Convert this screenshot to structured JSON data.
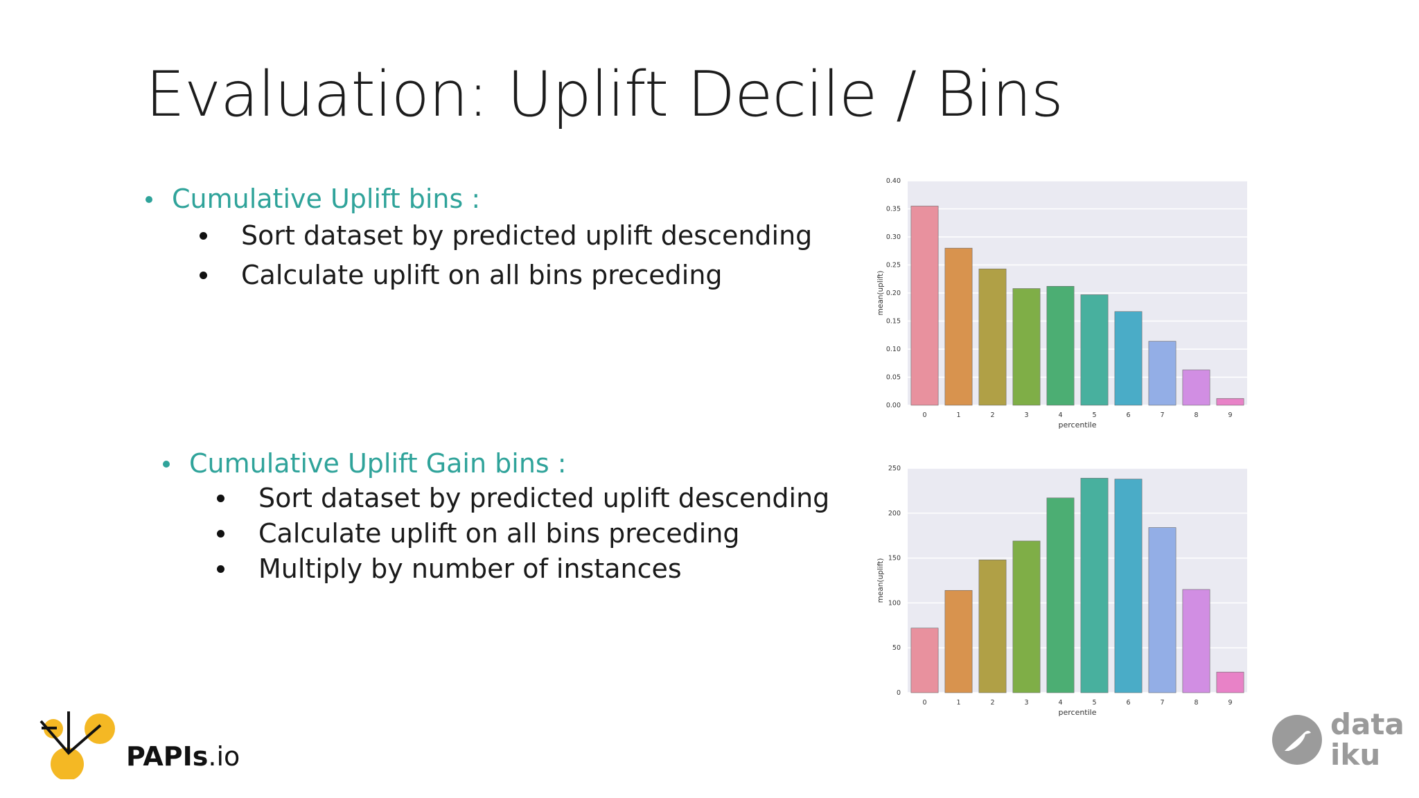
{
  "title": "Evaluation: Uplift Decile / Bins",
  "section1": {
    "heading": "Cumulative Uplift bins :",
    "bullets": [
      "Sort dataset by predicted uplift descending",
      "Calculate uplift on all bins preceding"
    ]
  },
  "section2": {
    "heading": "Cumulative Uplift Gain bins :",
    "bullets": [
      "Sort dataset by predicted uplift descending",
      "Calculate uplift on all bins preceding",
      "Multiply by number of instances"
    ]
  },
  "logos": {
    "papis": {
      "bold": "PAPIs",
      "light": ".io"
    },
    "dataiku": "data\niku"
  },
  "chart_data": [
    {
      "type": "bar",
      "categories": [
        "0",
        "1",
        "2",
        "3",
        "4",
        "5",
        "6",
        "7",
        "8",
        "9"
      ],
      "values": [
        0.355,
        0.28,
        0.243,
        0.208,
        0.212,
        0.197,
        0.167,
        0.114,
        0.063,
        0.012
      ],
      "colors": [
        "#e8919e",
        "#d8934e",
        "#b0a046",
        "#7fae47",
        "#4cae73",
        "#48b09e",
        "#4aacc7",
        "#93aee6",
        "#d18ee3",
        "#e882c7"
      ],
      "xlabel": "percentile",
      "ylabel": "mean(uplift)",
      "ylim": [
        0,
        0.4
      ],
      "yticks": [
        "0.00",
        "0.05",
        "0.10",
        "0.15",
        "0.20",
        "0.25",
        "0.30",
        "0.35",
        "0.40"
      ],
      "background": "#eaeaf2",
      "grid": true
    },
    {
      "type": "bar",
      "categories": [
        "0",
        "1",
        "2",
        "3",
        "4",
        "5",
        "6",
        "7",
        "8",
        "9"
      ],
      "values": [
        72,
        114,
        148,
        169,
        217,
        239,
        238,
        184,
        115,
        23
      ],
      "colors": [
        "#e8919e",
        "#d8934e",
        "#b0a046",
        "#7fae47",
        "#4cae73",
        "#48b09e",
        "#4aacc7",
        "#93aee6",
        "#d18ee3",
        "#e882c7"
      ],
      "xlabel": "percentile",
      "ylabel": "mean(uplift)",
      "ylim": [
        0,
        250
      ],
      "yticks": [
        "0",
        "50",
        "100",
        "150",
        "200",
        "250"
      ],
      "background": "#eaeaf2",
      "grid": true
    }
  ]
}
